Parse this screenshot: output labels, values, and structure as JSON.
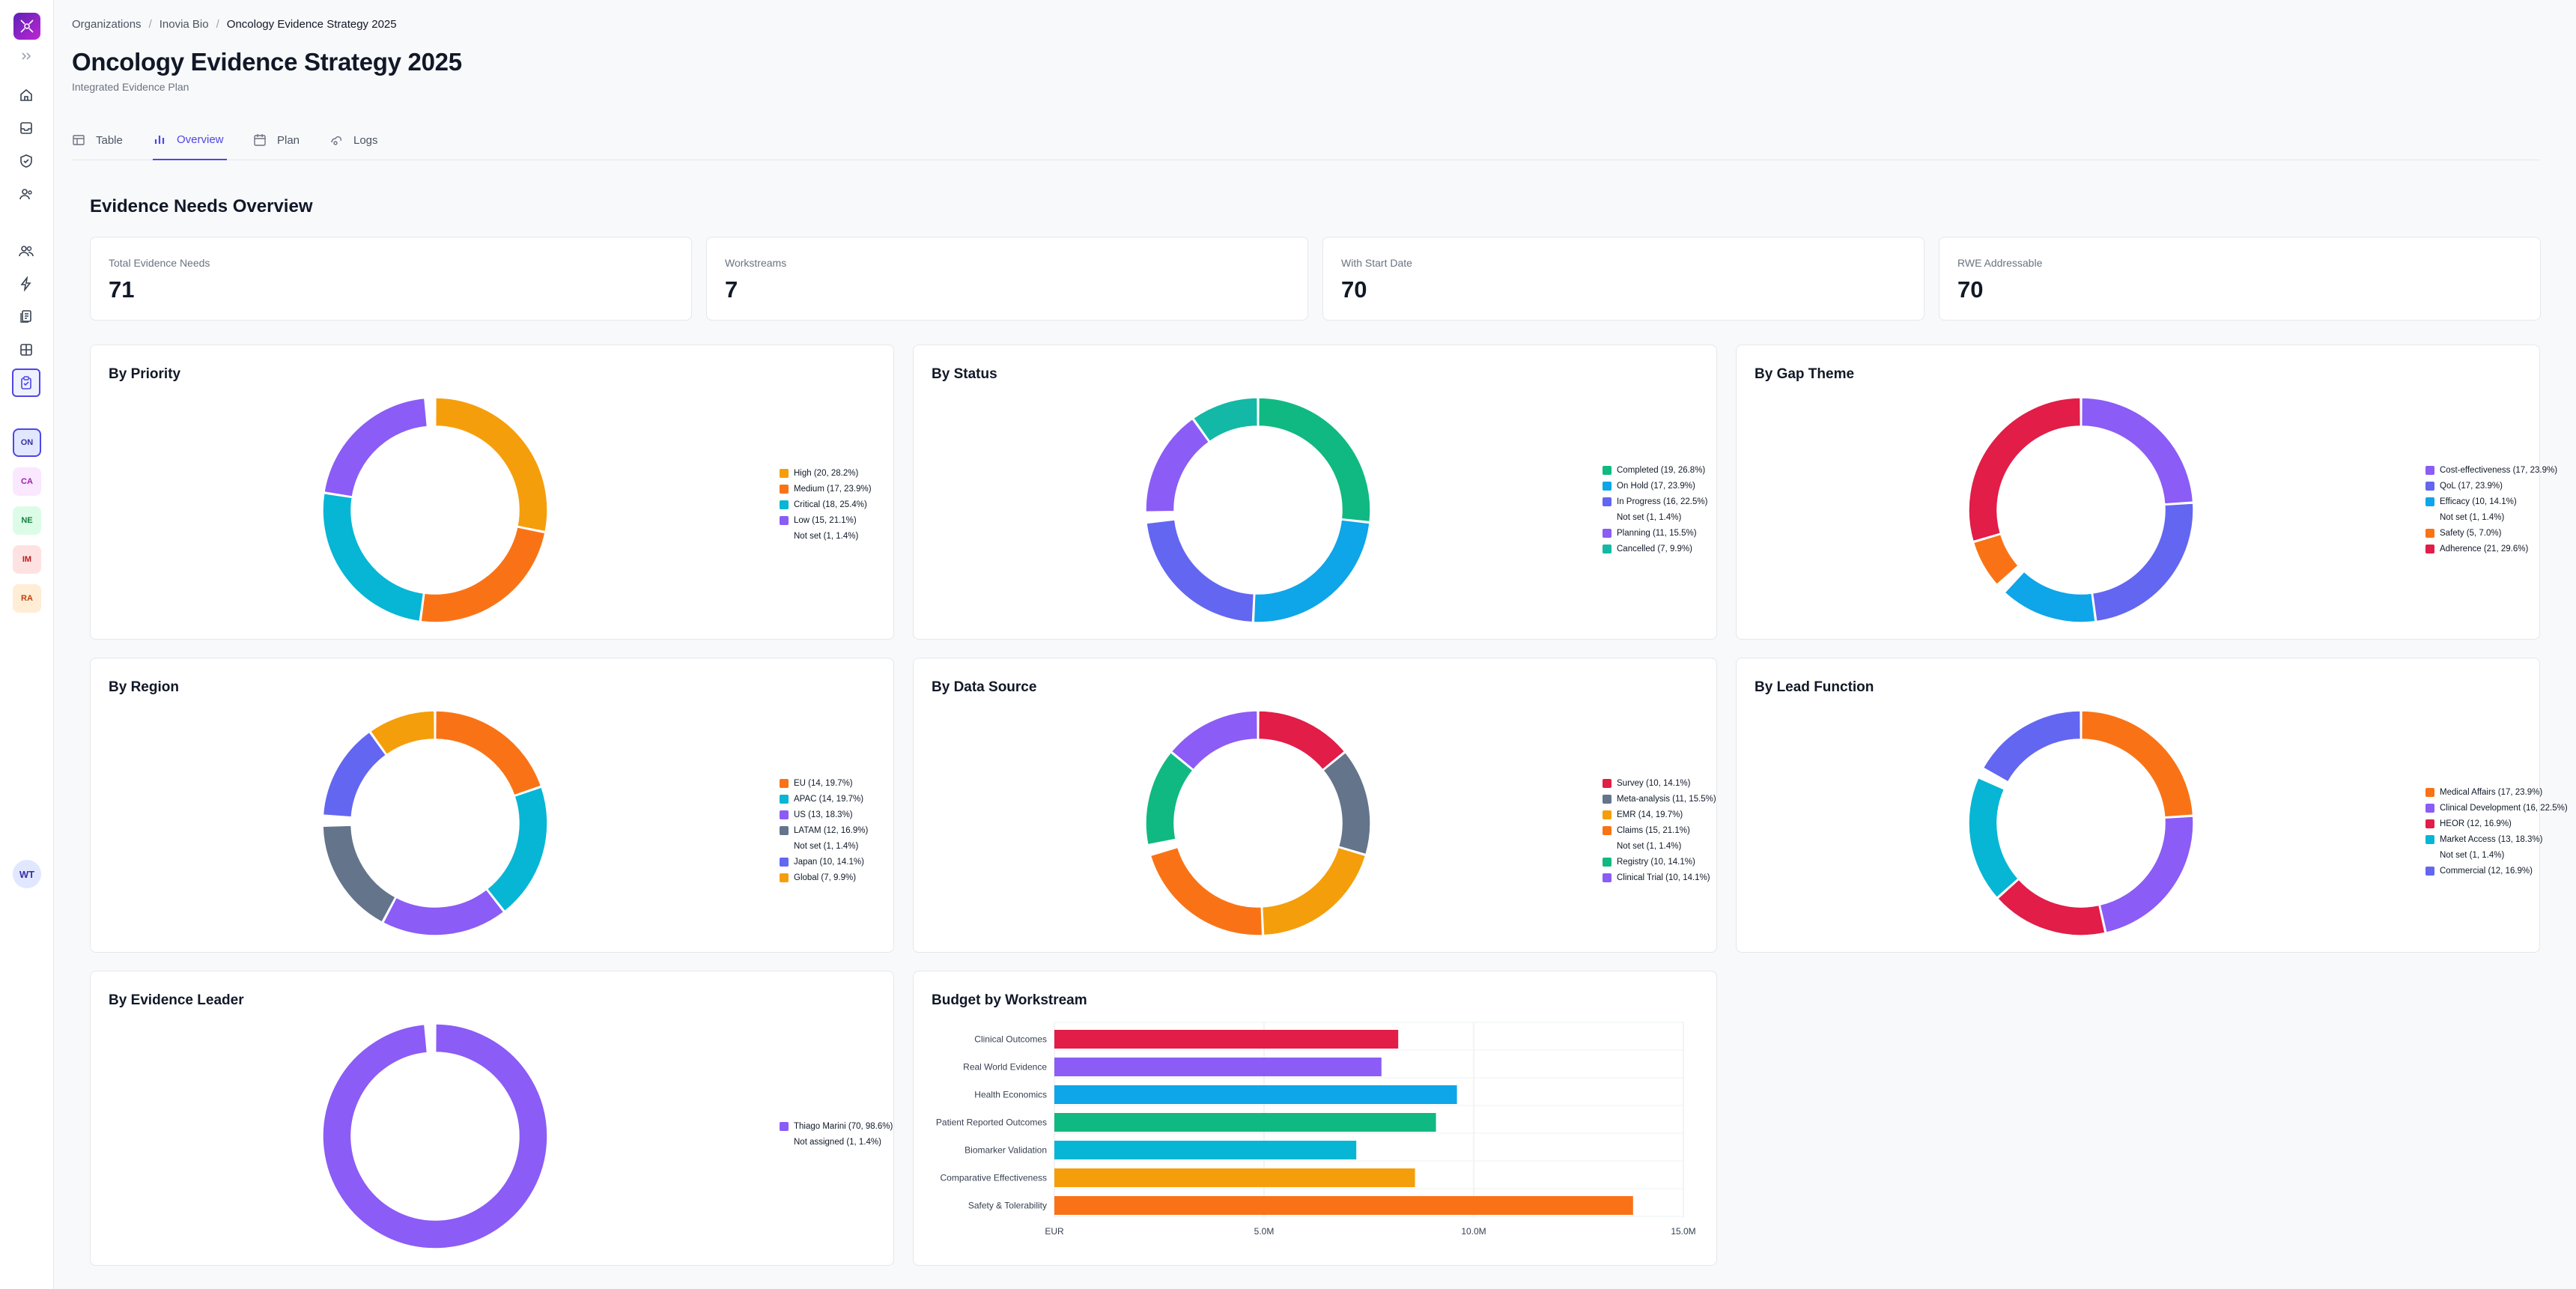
{
  "sidebar": {
    "logo": "app-logo",
    "nav_icons": [
      "expand-icon",
      "home-icon",
      "inbox-icon",
      "shield-icon",
      "users-icon",
      "team-icon",
      "lightning-icon",
      "documents-icon",
      "grid-icon",
      "clipboard-icon"
    ],
    "orgs": [
      {
        "code": "ON",
        "bg": "#e0e7ff",
        "fg": "#3730a3",
        "selected": true
      },
      {
        "code": "CA",
        "bg": "#fae8ff",
        "fg": "#a21caf",
        "selected": false
      },
      {
        "code": "NE",
        "bg": "#dcfce7",
        "fg": "#15803d",
        "selected": false
      },
      {
        "code": "IM",
        "bg": "#fee2e2",
        "fg": "#b91c1c",
        "selected": false
      },
      {
        "code": "RA",
        "bg": "#ffedd5",
        "fg": "#c2410c",
        "selected": false
      }
    ],
    "user_initials": "WT"
  },
  "breadcrumb": {
    "items": [
      "Organizations",
      "Inovia Bio",
      "Oncology Evidence Strategy 2025"
    ],
    "sep": "/"
  },
  "page": {
    "title": "Oncology Evidence Strategy 2025",
    "subtitle": "Integrated Evidence Plan"
  },
  "tabs": [
    {
      "label": "Table",
      "icon": "table-icon",
      "active": false
    },
    {
      "label": "Overview",
      "icon": "bar-chart-icon",
      "active": true
    },
    {
      "label": "Plan",
      "icon": "calendar-icon",
      "active": false
    },
    {
      "label": "Logs",
      "icon": "logs-icon",
      "active": false
    }
  ],
  "overview": {
    "title": "Evidence Needs Overview",
    "stats": [
      {
        "label": "Total Evidence Needs",
        "value": "71"
      },
      {
        "label": "Workstreams",
        "value": "7"
      },
      {
        "label": "With Start Date",
        "value": "70"
      },
      {
        "label": "RWE Addressable",
        "value": "70"
      }
    ]
  },
  "chart_data": [
    {
      "type": "pie",
      "title": "By Priority",
      "items": [
        {
          "label": "High (20, 28.2%)",
          "value": 20,
          "color": "#f59e0b"
        },
        {
          "label": "Medium (17, 23.9%)",
          "value": 17,
          "color": "#f97316"
        },
        {
          "label": "Critical (18, 25.4%)",
          "value": 18,
          "color": "#06b6d4"
        },
        {
          "label": "Low (15, 21.1%)",
          "value": 15,
          "color": "#8b5cf6"
        },
        {
          "label": "Not set (1, 1.4%)",
          "value": 1,
          "color": "#ffffff"
        }
      ]
    },
    {
      "type": "pie",
      "title": "By Status",
      "items": [
        {
          "label": "Completed (19, 26.8%)",
          "value": 19,
          "color": "#10b981"
        },
        {
          "label": "On Hold (17, 23.9%)",
          "value": 17,
          "color": "#0ea5e9"
        },
        {
          "label": "In Progress (16, 22.5%)",
          "value": 16,
          "color": "#6366f1"
        },
        {
          "label": "Not set (1, 1.4%)",
          "value": 1,
          "color": "#ffffff"
        },
        {
          "label": "Planning (11, 15.5%)",
          "value": 11,
          "color": "#8b5cf6"
        },
        {
          "label": "Cancelled (7, 9.9%)",
          "value": 7,
          "color": "#14b8a6"
        }
      ]
    },
    {
      "type": "pie",
      "title": "By Gap Theme",
      "items": [
        {
          "label": "Cost-effectiveness (17, 23.9%)",
          "value": 17,
          "color": "#8b5cf6"
        },
        {
          "label": "QoL (17, 23.9%)",
          "value": 17,
          "color": "#6366f1"
        },
        {
          "label": "Efficacy (10, 14.1%)",
          "value": 10,
          "color": "#0ea5e9"
        },
        {
          "label": "Not set (1, 1.4%)",
          "value": 1,
          "color": "#ffffff"
        },
        {
          "label": "Safety (5, 7.0%)",
          "value": 5,
          "color": "#f97316"
        },
        {
          "label": "Adherence (21, 29.6%)",
          "value": 21,
          "color": "#e11d48"
        }
      ]
    },
    {
      "type": "pie",
      "title": "By Region",
      "items": [
        {
          "label": "EU (14, 19.7%)",
          "value": 14,
          "color": "#f97316"
        },
        {
          "label": "APAC (14, 19.7%)",
          "value": 14,
          "color": "#06b6d4"
        },
        {
          "label": "US (13, 18.3%)",
          "value": 13,
          "color": "#8b5cf6"
        },
        {
          "label": "LATAM (12, 16.9%)",
          "value": 12,
          "color": "#64748b"
        },
        {
          "label": "Not set (1, 1.4%)",
          "value": 1,
          "color": "#ffffff"
        },
        {
          "label": "Japan (10, 14.1%)",
          "value": 10,
          "color": "#6366f1"
        },
        {
          "label": "Global (7, 9.9%)",
          "value": 7,
          "color": "#f59e0b"
        }
      ]
    },
    {
      "type": "pie",
      "title": "By Data Source",
      "items": [
        {
          "label": "Survey (10, 14.1%)",
          "value": 10,
          "color": "#e11d48"
        },
        {
          "label": "Meta-analysis (11, 15.5%)",
          "value": 11,
          "color": "#64748b"
        },
        {
          "label": "EMR (14, 19.7%)",
          "value": 14,
          "color": "#f59e0b"
        },
        {
          "label": "Claims (15, 21.1%)",
          "value": 15,
          "color": "#f97316"
        },
        {
          "label": "Not set (1, 1.4%)",
          "value": 1,
          "color": "#ffffff"
        },
        {
          "label": "Registry (10, 14.1%)",
          "value": 10,
          "color": "#10b981"
        },
        {
          "label": "Clinical Trial (10, 14.1%)",
          "value": 10,
          "color": "#8b5cf6"
        }
      ]
    },
    {
      "type": "pie",
      "title": "By Lead Function",
      "items": [
        {
          "label": "Medical Affairs (17, 23.9%)",
          "value": 17,
          "color": "#f97316"
        },
        {
          "label": "Clinical Development (16, 22.5%)",
          "value": 16,
          "color": "#8b5cf6"
        },
        {
          "label": "HEOR (12, 16.9%)",
          "value": 12,
          "color": "#e11d48"
        },
        {
          "label": "Market Access (13, 18.3%)",
          "value": 13,
          "color": "#06b6d4"
        },
        {
          "label": "Not set (1, 1.4%)",
          "value": 1,
          "color": "#ffffff"
        },
        {
          "label": "Commercial (12, 16.9%)",
          "value": 12,
          "color": "#6366f1"
        }
      ]
    },
    {
      "type": "pie",
      "title": "By Evidence Leader",
      "items": [
        {
          "label": "Thiago Marini (70, 98.6%)",
          "value": 70,
          "color": "#8b5cf6"
        },
        {
          "label": "Not assigned (1, 1.4%)",
          "value": 1,
          "color": "#ffffff"
        }
      ]
    },
    {
      "type": "bar",
      "orientation": "horizontal",
      "title": "Budget by Workstream",
      "categories": [
        "Clinical Outcomes",
        "Real World Evidence",
        "Health Economics",
        "Patient Reported Outcomes",
        "Biomarker Validation",
        "Comparative Effectiveness",
        "Safety & Tolerability"
      ],
      "values": [
        8.2,
        7.8,
        9.6,
        9.1,
        7.2,
        8.6,
        13.8
      ],
      "colors": [
        "#e11d48",
        "#8b5cf6",
        "#0ea5e9",
        "#10b981",
        "#06b6d4",
        "#f59e0b",
        "#f97316"
      ],
      "xaxis": {
        "ticks": [
          "EUR",
          "5.0M",
          "10.0M",
          "15.0M"
        ],
        "range": [
          0,
          15
        ]
      },
      "grid": true
    }
  ]
}
